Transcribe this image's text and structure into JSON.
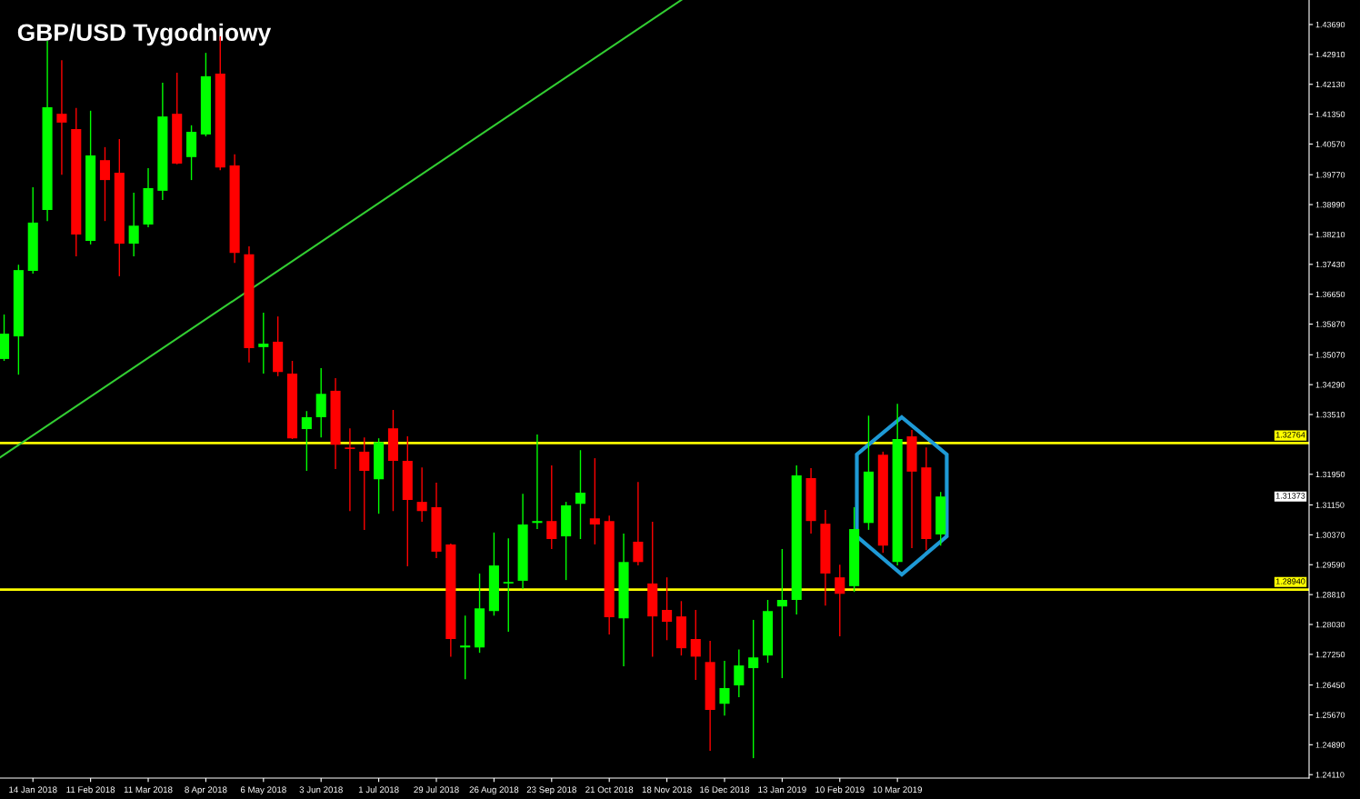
{
  "chart_data": {
    "type": "candlestick",
    "title": "GBP/USD Tygodniowy",
    "x": [
      "2017-12-31",
      "2018-01-07",
      "2018-01-14",
      "2018-01-21",
      "2018-01-28",
      "2018-02-04",
      "2018-02-11",
      "2018-02-18",
      "2018-02-25",
      "2018-03-04",
      "2018-03-11",
      "2018-03-18",
      "2018-03-25",
      "2018-04-01",
      "2018-04-08",
      "2018-04-15",
      "2018-04-22",
      "2018-04-29",
      "2018-05-06",
      "2018-05-13",
      "2018-05-20",
      "2018-05-27",
      "2018-06-03",
      "2018-06-10",
      "2018-06-17",
      "2018-06-24",
      "2018-07-01",
      "2018-07-08",
      "2018-07-15",
      "2018-07-22",
      "2018-07-29",
      "2018-08-05",
      "2018-08-12",
      "2018-08-19",
      "2018-08-26",
      "2018-09-02",
      "2018-09-09",
      "2018-09-16",
      "2018-09-23",
      "2018-09-30",
      "2018-10-07",
      "2018-10-14",
      "2018-10-21",
      "2018-10-28",
      "2018-11-04",
      "2018-11-11",
      "2018-11-18",
      "2018-11-25",
      "2018-12-02",
      "2018-12-09",
      "2018-12-16",
      "2018-12-23",
      "2018-12-30",
      "2019-01-06",
      "2019-01-13",
      "2019-01-20",
      "2019-01-27",
      "2019-02-03",
      "2019-02-10",
      "2019-02-17",
      "2019-02-24",
      "2019-03-03",
      "2019-03-10",
      "2019-03-17",
      "2019-03-24",
      "2019-03-31"
    ],
    "ohlc": [
      [
        1.3496,
        1.3612,
        1.3491,
        1.3562
      ],
      [
        1.3555,
        1.3742,
        1.3455,
        1.3728
      ],
      [
        1.3726,
        1.3944,
        1.3719,
        1.3852
      ],
      [
        1.3885,
        1.4326,
        1.3856,
        1.4153
      ],
      [
        1.4136,
        1.4276,
        1.3977,
        1.4113
      ],
      [
        1.4096,
        1.4151,
        1.3764,
        1.3821
      ],
      [
        1.3804,
        1.4144,
        1.3795,
        1.4027
      ],
      [
        1.4015,
        1.4049,
        1.3856,
        1.3963
      ],
      [
        1.3982,
        1.407,
        1.3712,
        1.3797
      ],
      [
        1.3797,
        1.393,
        1.3764,
        1.3844
      ],
      [
        1.3847,
        1.3994,
        1.384,
        1.3942
      ],
      [
        1.3935,
        1.4217,
        1.3911,
        1.4129
      ],
      [
        1.4136,
        1.4243,
        1.4004,
        1.4006
      ],
      [
        1.4023,
        1.4106,
        1.3963,
        1.4089
      ],
      [
        1.4082,
        1.4295,
        1.4077,
        1.4234
      ],
      [
        1.4241,
        1.4338,
        1.3989,
        1.3996
      ],
      [
        1.4001,
        1.403,
        1.3747,
        1.3773
      ],
      [
        1.3769,
        1.379,
        1.3487,
        1.3524
      ],
      [
        1.3527,
        1.3617,
        1.3458,
        1.3536
      ],
      [
        1.3541,
        1.3607,
        1.3451,
        1.3462
      ],
      [
        1.3458,
        1.3491,
        1.3287,
        1.3289
      ],
      [
        1.3313,
        1.336,
        1.3204,
        1.3344
      ],
      [
        1.3344,
        1.3472,
        1.3291,
        1.3405
      ],
      [
        1.3413,
        1.3446,
        1.3209,
        1.3272
      ],
      [
        1.3265,
        1.3315,
        1.3099,
        1.3261
      ],
      [
        1.3254,
        1.3291,
        1.305,
        1.3204
      ],
      [
        1.3182,
        1.3289,
        1.3092,
        1.3279
      ],
      [
        1.3315,
        1.3363,
        1.3099,
        1.323
      ],
      [
        1.323,
        1.3294,
        1.2955,
        1.3128
      ],
      [
        1.3123,
        1.3213,
        1.3071,
        1.3099
      ],
      [
        1.3109,
        1.3173,
        1.2976,
        1.2993
      ],
      [
        1.3012,
        1.3014,
        1.2719,
        1.2765
      ],
      [
        1.2743,
        1.2826,
        1.266,
        1.2748
      ],
      [
        1.2743,
        1.2936,
        1.2729,
        1.2845
      ],
      [
        1.2838,
        1.3043,
        1.2826,
        1.2957
      ],
      [
        1.291,
        1.3028,
        1.2784,
        1.2914
      ],
      [
        1.2917,
        1.3144,
        1.2895,
        1.3064
      ],
      [
        1.3068,
        1.3299,
        1.3052,
        1.3073
      ],
      [
        1.3073,
        1.3218,
        1.3,
        1.3026
      ],
      [
        1.3033,
        1.3123,
        1.2919,
        1.3114
      ],
      [
        1.3118,
        1.3258,
        1.3026,
        1.3147
      ],
      [
        1.308,
        1.3237,
        1.3012,
        1.3064
      ],
      [
        1.3073,
        1.3087,
        1.2777,
        1.2822
      ],
      [
        1.2819,
        1.304,
        1.2694,
        1.2966
      ],
      [
        1.3019,
        1.3175,
        1.2957,
        1.2966
      ],
      [
        1.291,
        1.3071,
        1.2719,
        1.2824
      ],
      [
        1.2841,
        1.2926,
        1.2762,
        1.281
      ],
      [
        1.2824,
        1.2864,
        1.2722,
        1.2741
      ],
      [
        1.2765,
        1.2841,
        1.2658,
        1.2719
      ],
      [
        1.2705,
        1.276,
        1.2473,
        1.258
      ],
      [
        1.2596,
        1.2708,
        1.2565,
        1.2637
      ],
      [
        1.2644,
        1.2738,
        1.2613,
        1.2696
      ],
      [
        1.2689,
        1.2815,
        1.2454,
        1.2717
      ],
      [
        1.2722,
        1.2867,
        1.2703,
        1.2838
      ],
      [
        1.285,
        1.3,
        1.2663,
        1.2867
      ],
      [
        1.2867,
        1.3218,
        1.2829,
        1.3192
      ],
      [
        1.3185,
        1.3211,
        1.304,
        1.3073
      ],
      [
        1.3066,
        1.3102,
        1.2852,
        1.2936
      ],
      [
        1.2926,
        1.2959,
        1.2772,
        1.2883
      ],
      [
        1.2903,
        1.3109,
        1.2888,
        1.3052
      ],
      [
        1.3068,
        1.3348,
        1.305,
        1.3202
      ],
      [
        1.3246,
        1.3254,
        1.299,
        1.3009
      ],
      [
        1.2966,
        1.3379,
        1.2957,
        1.3287
      ],
      [
        1.3294,
        1.3311,
        1.3002,
        1.3202
      ],
      [
        1.3213,
        1.3265,
        1.2997,
        1.3026
      ],
      [
        1.3038,
        1.3149,
        1.3009,
        1.3137
      ]
    ],
    "colors": [
      "#00ff00",
      "#00ff00",
      "#00ff00",
      "#00ff00",
      "#ff0000",
      "#ff0000",
      "#00ff00",
      "#ff0000",
      "#ff0000",
      "#00ff00",
      "#00ff00",
      "#00ff00",
      "#ff0000",
      "#00ff00",
      "#00ff00",
      "#ff0000",
      "#ff0000",
      "#ff0000",
      "#00ff00",
      "#ff0000",
      "#ff0000",
      "#00ff00",
      "#00ff00",
      "#ff0000",
      "#ff0000",
      "#ff0000",
      "#00ff00",
      "#ff0000",
      "#ff0000",
      "#ff0000",
      "#ff0000",
      "#ff0000",
      "#00ff00",
      "#00ff00",
      "#00ff00",
      "#00ff00",
      "#00ff00",
      "#00ff00",
      "#ff0000",
      "#00ff00",
      "#00ff00",
      "#ff0000",
      "#ff0000",
      "#00ff00",
      "#ff0000",
      "#ff0000",
      "#ff0000",
      "#ff0000",
      "#ff0000",
      "#ff0000",
      "#00ff00",
      "#00ff00",
      "#00ff00",
      "#00ff00",
      "#00ff00",
      "#00ff00",
      "#ff0000",
      "#ff0000",
      "#ff0000",
      "#00ff00",
      "#00ff00",
      "#ff0000",
      "#00ff00",
      "#ff0000",
      "#ff0000",
      "#00ff00"
    ],
    "series": [
      {
        "type": "line",
        "color": "#32cd32",
        "x": [
          "2017-12-29",
          "2018-11-25"
        ],
        "values": [
          1.3239,
          1.4433
        ]
      }
    ],
    "ref_lines": [
      {
        "axis": "y",
        "value": 1.32764,
        "label": "1.32764",
        "color": "#ffff00"
      },
      {
        "axis": "y",
        "value": 1.2894,
        "label": "1.28940",
        "color": "#ffff00"
      }
    ],
    "annotations": [
      "1.31373"
    ],
    "xlim": [
      "2017-12-29",
      "2019-09-26"
    ],
    "xticks": [
      {
        "value": "2018-01-14",
        "label": "14 Jan 2018"
      },
      {
        "value": "2018-02-11",
        "label": "11 Feb 2018"
      },
      {
        "value": "2018-03-11",
        "label": "11 Mar 2018"
      },
      {
        "value": "2018-04-08",
        "label": "8 Apr 2018"
      },
      {
        "value": "2018-05-06",
        "label": "6 May 2018"
      },
      {
        "value": "2018-06-03",
        "label": "3 Jun 2018"
      },
      {
        "value": "2018-07-01",
        "label": "1 Jul 2018"
      },
      {
        "value": "2018-07-29",
        "label": "29 Jul 2018"
      },
      {
        "value": "2018-08-26",
        "label": "26 Aug 2018"
      },
      {
        "value": "2018-09-23",
        "label": "23 Sep 2018"
      },
      {
        "value": "2018-10-21",
        "label": "21 Oct 2018"
      },
      {
        "value": "2018-11-18",
        "label": "18 Nov 2018"
      },
      {
        "value": "2018-12-16",
        "label": "16 Dec 2018"
      },
      {
        "value": "2019-01-13",
        "label": "13 Jan 2019"
      },
      {
        "value": "2019-02-10",
        "label": "10 Feb 2019"
      },
      {
        "value": "2019-03-10",
        "label": "10 Mar 2019"
      }
    ],
    "ylim": [
      1.2402,
      1.4433
    ],
    "yticks": [
      {
        "value": 1.2411,
        "label": "1.24110"
      },
      {
        "value": 1.2489,
        "label": "1.24890"
      },
      {
        "value": 1.2567,
        "label": "1.25670"
      },
      {
        "value": 1.2645,
        "label": "1.26450"
      },
      {
        "value": 1.2725,
        "label": "1.27250"
      },
      {
        "value": 1.2803,
        "label": "1.28030"
      },
      {
        "value": 1.2881,
        "label": "1.28810"
      },
      {
        "value": 1.2959,
        "label": "1.29590"
      },
      {
        "value": 1.3037,
        "label": "1.30370"
      },
      {
        "value": 1.3115,
        "label": "1.31150"
      },
      {
        "value": 1.3195,
        "label": "1.31950"
      },
      {
        "value": 1.3351,
        "label": "1.33510"
      },
      {
        "value": 1.3429,
        "label": "1.34290"
      },
      {
        "value": 1.3507,
        "label": "1.35070"
      },
      {
        "value": 1.3587,
        "label": "1.35870"
      },
      {
        "value": 1.3665,
        "label": "1.36650"
      },
      {
        "value": 1.3743,
        "label": "1.37430"
      },
      {
        "value": 1.3821,
        "label": "1.38210"
      },
      {
        "value": 1.3899,
        "label": "1.38990"
      },
      {
        "value": 1.3977,
        "label": "1.39770"
      },
      {
        "value": 1.4057,
        "label": "1.40570"
      },
      {
        "value": 1.4135,
        "label": "1.41350"
      },
      {
        "value": 1.4213,
        "label": "1.42130"
      },
      {
        "value": 1.4291,
        "label": "1.42910"
      },
      {
        "value": 1.4369,
        "label": "1.43690"
      }
    ],
    "grid": false,
    "legend": false
  }
}
